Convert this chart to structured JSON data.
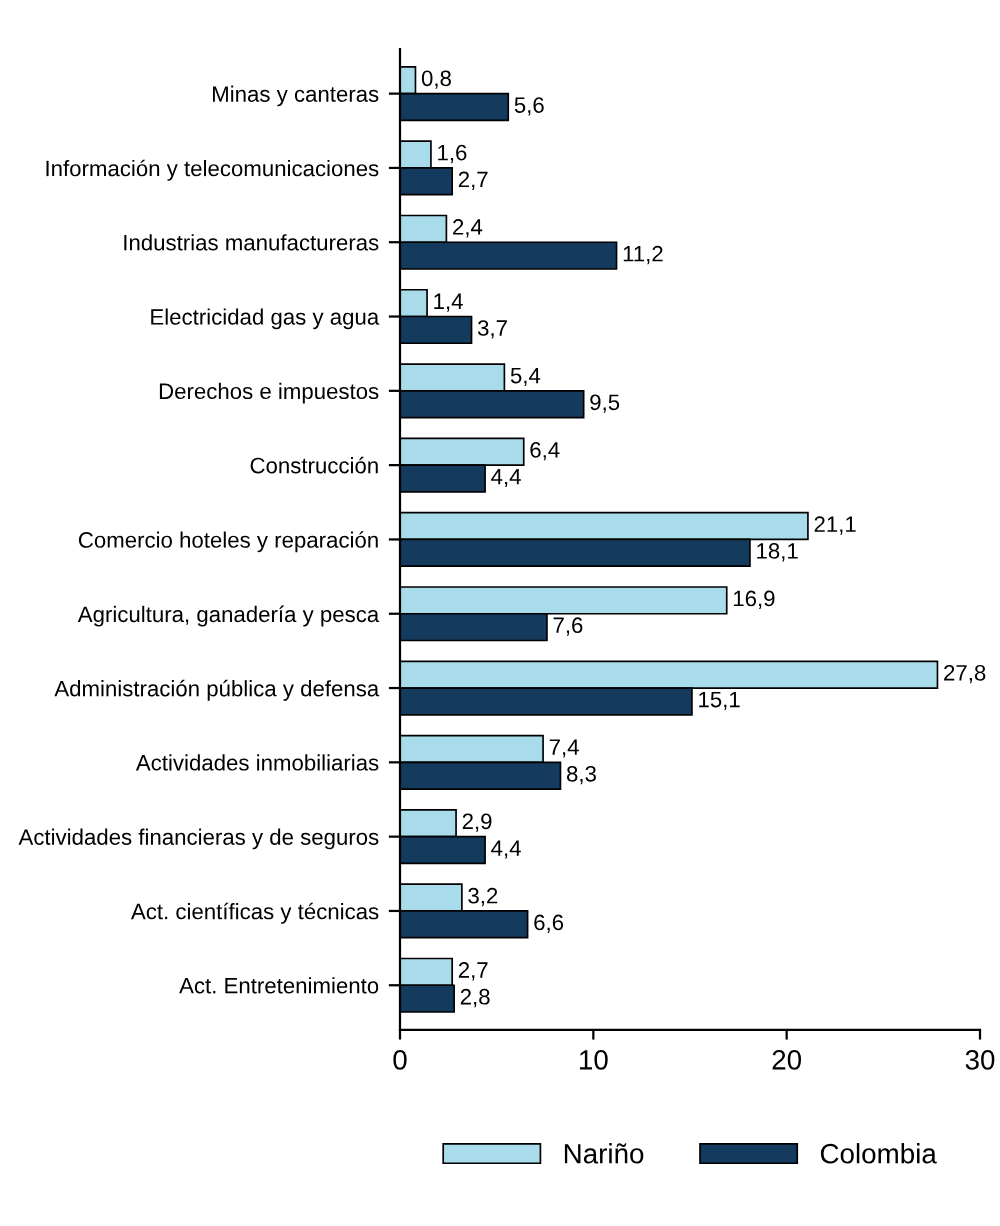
{
  "chart_data": {
    "type": "bar",
    "orientation": "horizontal",
    "categories": [
      "Minas y canteras",
      "Información y telecomunicaciones",
      "Industrias manufactureras",
      "Electricidad gas y agua",
      "Derechos e impuestos",
      "Construcción",
      "Comercio hoteles y reparación",
      "Agricultura, ganadería y pesca",
      "Administración pública y defensa",
      "Actividades inmobiliarias",
      "Actividades financieras y de seguros",
      "Act. científicas y técnicas",
      "Act. Entretenimiento"
    ],
    "series": [
      {
        "name": "Nariño",
        "color": "#a9dcea",
        "values": [
          0.8,
          1.6,
          2.4,
          1.4,
          5.4,
          6.4,
          21.1,
          16.9,
          27.8,
          7.4,
          2.9,
          3.2,
          2.7
        ],
        "value_labels": [
          "0,8",
          "1,6",
          "2,4",
          "1,4",
          "5,4",
          "6,4",
          "21,1",
          "16,9",
          "27,8",
          "7,4",
          "2,9",
          "3,2",
          "2,7"
        ]
      },
      {
        "name": "Colombia",
        "color": "#143a5e",
        "values": [
          5.6,
          2.7,
          11.2,
          3.7,
          9.5,
          4.4,
          18.1,
          7.6,
          15.1,
          8.3,
          4.4,
          6.6,
          2.8
        ],
        "value_labels": [
          "5,6",
          "2,7",
          "11,2",
          "3,7",
          "9,5",
          "4,4",
          "18,1",
          "7,6",
          "15,1",
          "8,3",
          "4,4",
          "6,6",
          "2,8"
        ]
      }
    ],
    "xlim": [
      0,
      30
    ],
    "xticks": [
      0,
      10,
      20,
      30
    ],
    "grid": false,
    "legend": "bottom"
  }
}
